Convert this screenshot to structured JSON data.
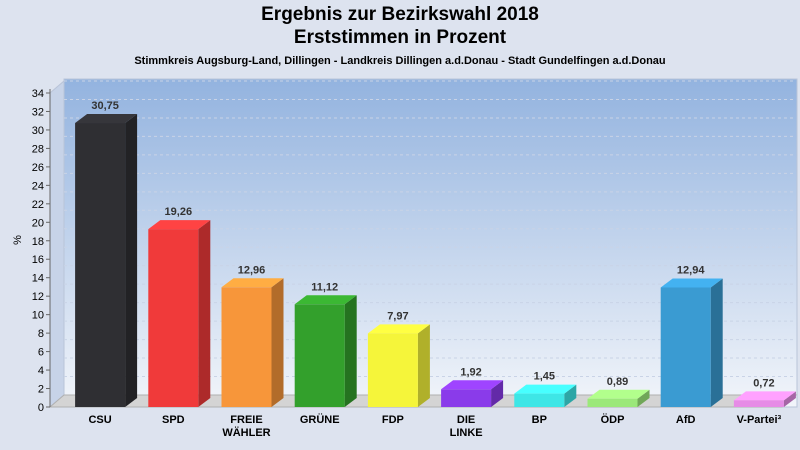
{
  "header": {
    "title": "Ergebnis zur Bezirkswahl 2018",
    "subtitle": "Erststimmen in Prozent",
    "caption": "Stimmkreis Augsburg-Land, Dillingen - Landkreis Dillingen a.d.Donau - Stadt Gundelfingen a.d.Donau"
  },
  "chart_data": {
    "type": "bar",
    "title": "Ergebnis zur Bezirkswahl 2018",
    "subtitle": "Erststimmen in Prozent",
    "ylabel": "%",
    "xlabel": "",
    "ylim": [
      0,
      34
    ],
    "yticks": [
      0,
      2,
      4,
      6,
      8,
      10,
      12,
      14,
      16,
      18,
      20,
      22,
      24,
      26,
      28,
      30,
      32,
      34
    ],
    "categories": [
      [
        "CSU"
      ],
      [
        "SPD"
      ],
      [
        "FREIE",
        "WÄHLER"
      ],
      [
        "GRÜNE"
      ],
      [
        "FDP"
      ],
      [
        "DIE",
        "LINKE"
      ],
      [
        "BP"
      ],
      [
        "ÖDP"
      ],
      [
        "AfD"
      ],
      [
        "V-Partei³"
      ]
    ],
    "values": [
      30.75,
      19.26,
      12.96,
      11.12,
      7.97,
      1.92,
      1.45,
      0.89,
      12.94,
      0.72
    ],
    "value_labels": [
      "30,75",
      "19,26",
      "12,96",
      "11,12",
      "7,97",
      "1,92",
      "1,45",
      "0,89",
      "12,94",
      "0,72"
    ],
    "colors": [
      "#2f2f33",
      "#f03a3a",
      "#f7963a",
      "#33a02c",
      "#f5f53a",
      "#8a3bea",
      "#3ee6e6",
      "#9be87a",
      "#3a9bd2",
      "#e68ce6"
    ],
    "grid": true,
    "legend": "none"
  }
}
